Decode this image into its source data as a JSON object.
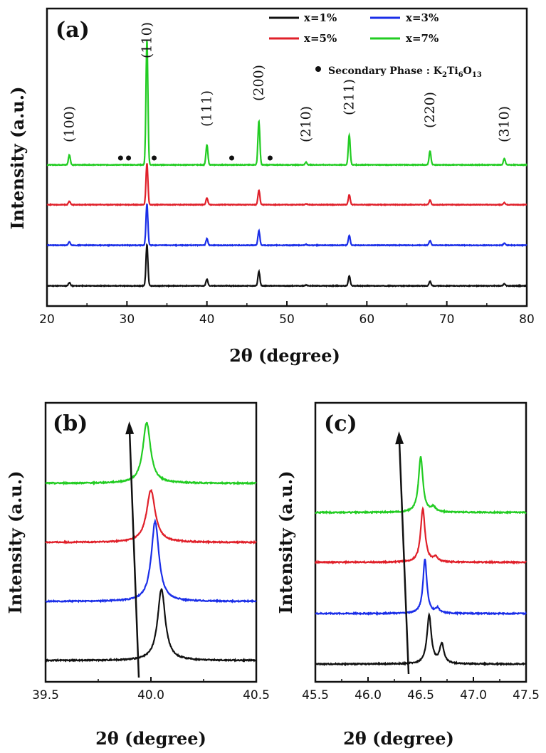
{
  "chart_data": [
    {
      "panel": "(a)",
      "type": "line",
      "xlabel": "2θ (degree)",
      "ylabel": "Intensity (a.u.)",
      "xlim": [
        20,
        80
      ],
      "xticks": [
        "20",
        "30",
        "40",
        "50",
        "60",
        "70",
        "80"
      ],
      "series": [
        {
          "name": "x=1%",
          "color": "#111111",
          "offset": 0
        },
        {
          "name": "x=3%",
          "color": "#1a2ee8",
          "offset": 1
        },
        {
          "name": "x=5%",
          "color": "#e0202a",
          "offset": 2
        },
        {
          "name": "x=7%",
          "color": "#22cc22",
          "offset": 3
        }
      ],
      "peaks": [
        {
          "x": 22.8,
          "height": 0.08
        },
        {
          "x": 32.5,
          "height": 1.0
        },
        {
          "x": 40.0,
          "height": 0.16
        },
        {
          "x": 46.5,
          "height": 0.35
        },
        {
          "x": 52.4,
          "height": 0.02
        },
        {
          "x": 57.8,
          "height": 0.24
        },
        {
          "x": 67.9,
          "height": 0.11
        },
        {
          "x": 77.2,
          "height": 0.05
        }
      ],
      "peak_labels": [
        {
          "x": 22.8,
          "label": "(100)"
        },
        {
          "x": 32.5,
          "label": "(110)"
        },
        {
          "x": 40.0,
          "label": "(111)"
        },
        {
          "x": 46.5,
          "label": "(200)"
        },
        {
          "x": 52.4,
          "label": "(210)"
        },
        {
          "x": 57.8,
          "label": "(211)"
        },
        {
          "x": 67.9,
          "label": "(220)"
        },
        {
          "x": 77.2,
          "label": "(310)"
        }
      ],
      "secondary_phase_x": [
        29.2,
        30.2,
        33.4,
        43.1,
        47.9
      ],
      "secondary_phase_label": {
        "prefix": "Secondary Phase : K",
        "sub1": "2",
        "mid1": "Ti",
        "sub2": "6",
        "mid2": "O",
        "sub3": "13"
      }
    },
    {
      "panel": "(b)",
      "type": "line",
      "xlabel": "2θ (degree)",
      "ylabel": "Intensity (a.u.)",
      "xlim": [
        39.5,
        40.5
      ],
      "xticks": [
        "39.5",
        "40.0",
        "40.5"
      ],
      "series": [
        {
          "name": "x=1%",
          "color": "#111111",
          "peak_x": 40.05
        },
        {
          "name": "x=3%",
          "color": "#1a2ee8",
          "peak_x": 40.02
        },
        {
          "name": "x=5%",
          "color": "#e0202a",
          "peak_x": 40.0
        },
        {
          "name": "x=7%",
          "color": "#22cc22",
          "peak_x": 39.98
        }
      ]
    },
    {
      "panel": "(c)",
      "type": "line",
      "xlabel": "2θ (degree)",
      "ylabel": "Intensity (a.u.)",
      "xlim": [
        45.5,
        47.5
      ],
      "xticks": [
        "45.5",
        "46.0",
        "46.5",
        "47.0",
        "47.5"
      ],
      "series": [
        {
          "name": "x=1%",
          "color": "#111111",
          "peak_x": 46.58
        },
        {
          "name": "x=3%",
          "color": "#1a2ee8",
          "peak_x": 46.54
        },
        {
          "name": "x=5%",
          "color": "#e0202a",
          "peak_x": 46.52
        },
        {
          "name": "x=7%",
          "color": "#22cc22",
          "peak_x": 46.5
        }
      ]
    }
  ],
  "legend": [
    {
      "label": "x=1%",
      "color": "#111111"
    },
    {
      "label": "x=3%",
      "color": "#1a2ee8"
    },
    {
      "label": "x=5%",
      "color": "#e0202a"
    },
    {
      "label": "x=7%",
      "color": "#22cc22"
    }
  ]
}
